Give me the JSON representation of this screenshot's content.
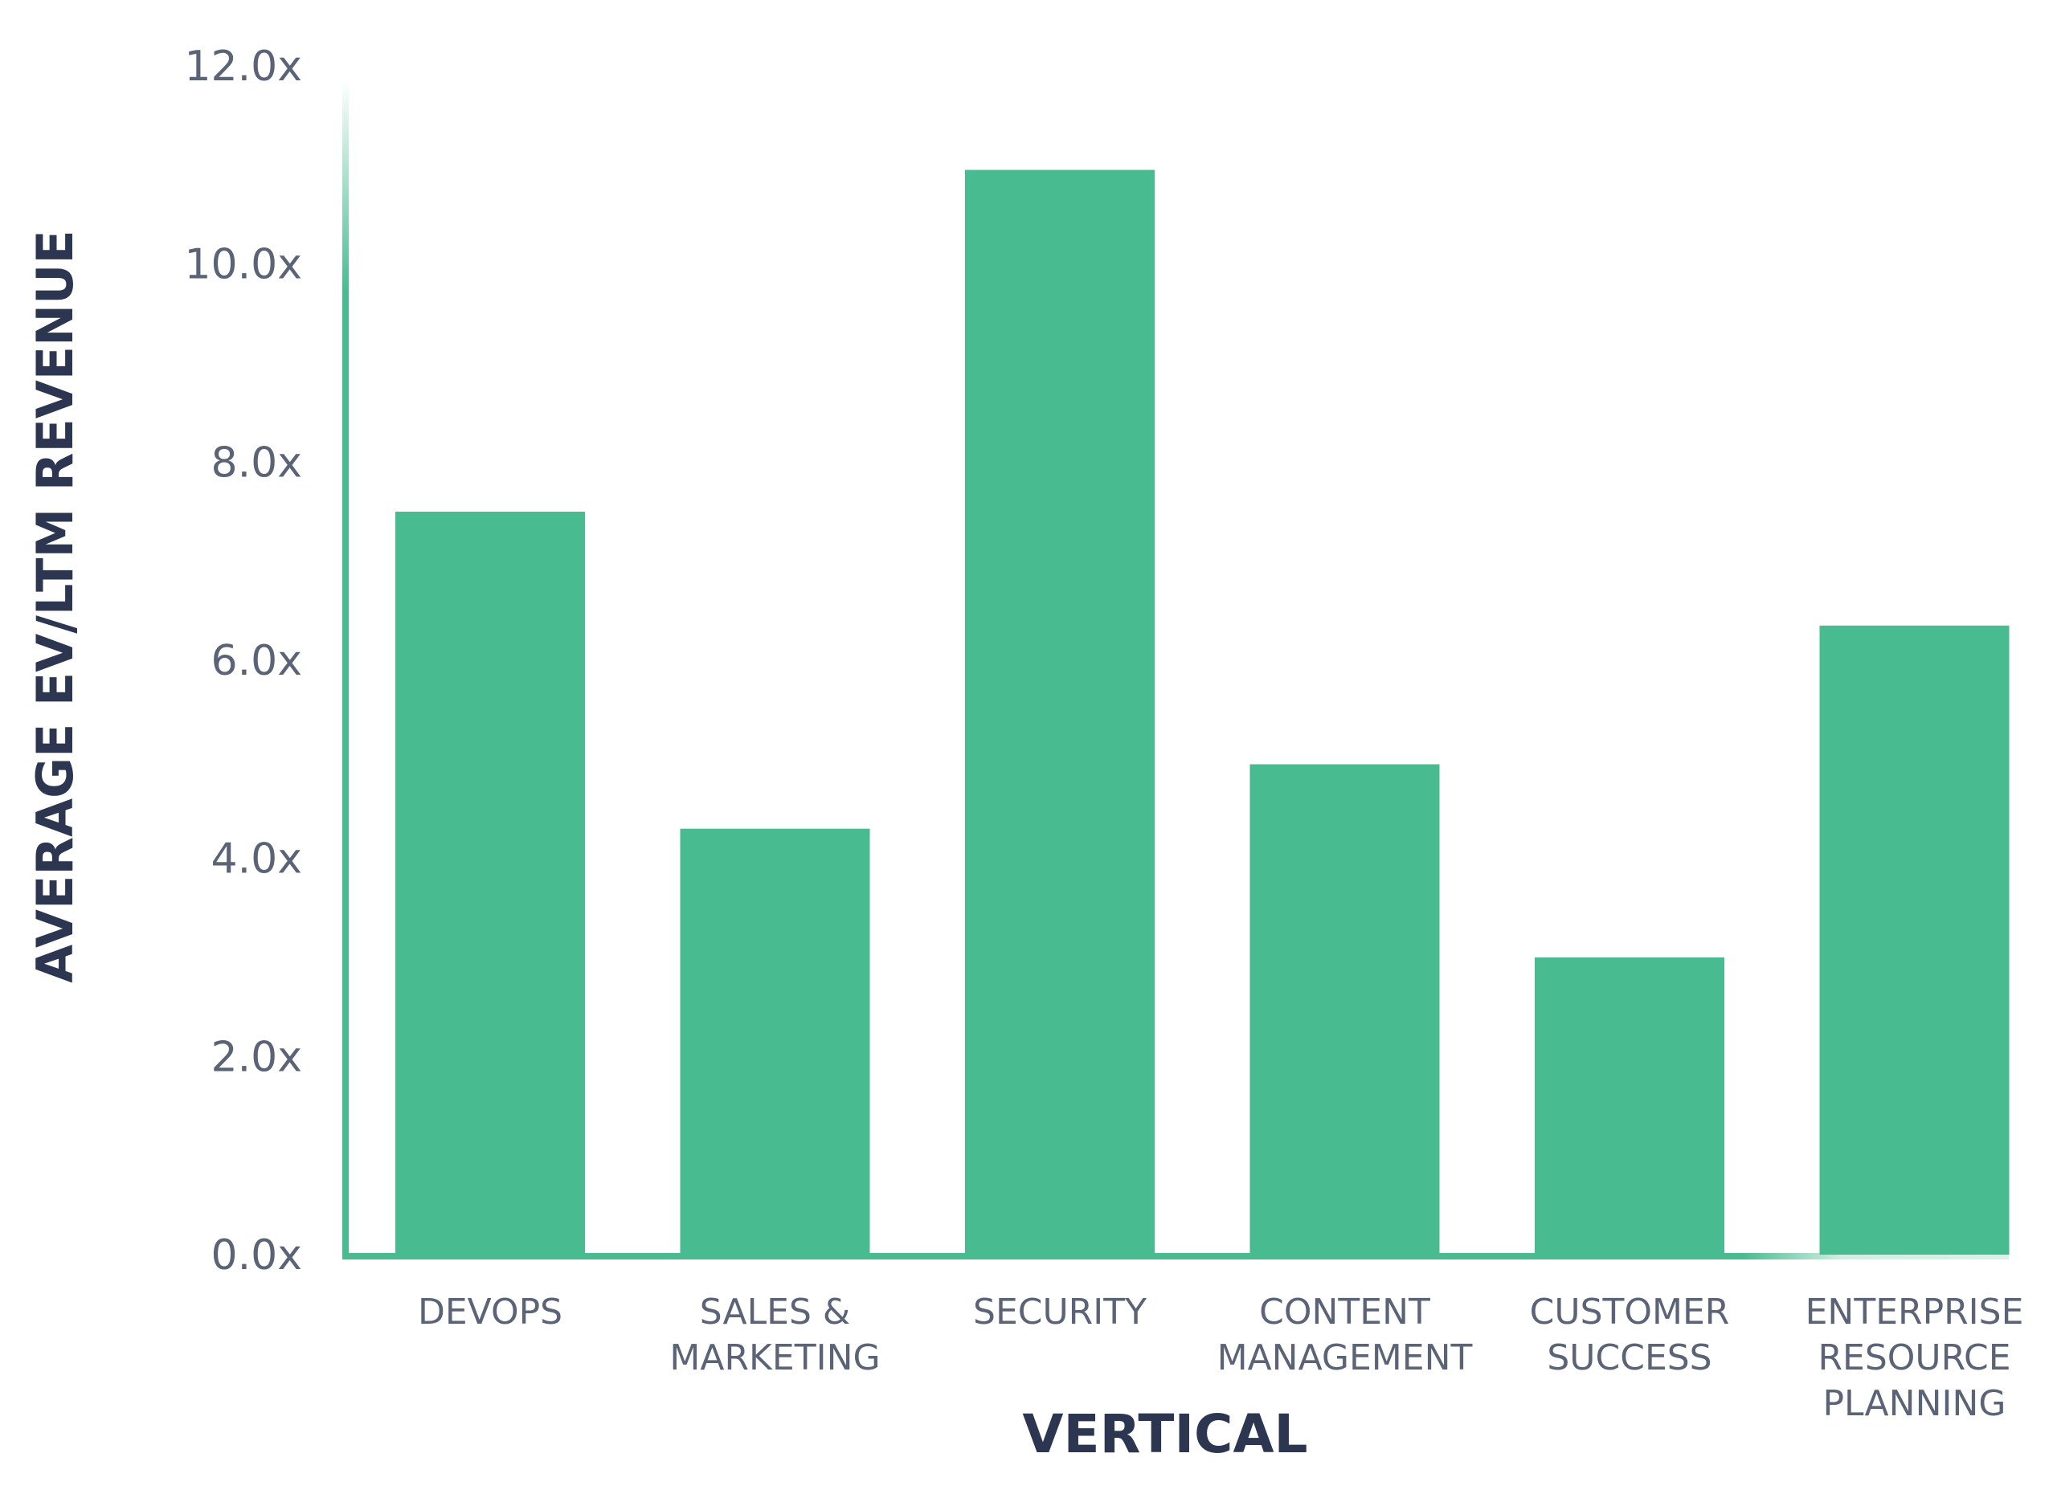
{
  "chart_data": {
    "type": "bar",
    "title": "",
    "xlabel": "VERTICAL",
    "ylabel": "AVERAGE EV/LTM REVENUE",
    "categories": [
      [
        "DEVOPS"
      ],
      [
        "SALES &",
        "MARKETING"
      ],
      [
        "SECURITY"
      ],
      [
        "CONTENT",
        "MANAGEMENT"
      ],
      [
        "CUSTOMER",
        "SUCCESS"
      ],
      [
        "ENTERPRISE",
        "RESOURCE",
        "PLANNING"
      ]
    ],
    "values": [
      7.5,
      4.3,
      10.95,
      4.95,
      3.0,
      6.35
    ],
    "ylim": [
      0,
      12
    ],
    "yticks": [
      "0.0x",
      "2.0x",
      "4.0x",
      "6.0x",
      "8.0x",
      "10.0x",
      "12.0x"
    ],
    "grid": false,
    "legend": "none",
    "colors": {
      "bar": "#49bb90",
      "axis": "#49bb90",
      "tick_text": "#5b6377",
      "title_text": "#2c3651"
    }
  }
}
